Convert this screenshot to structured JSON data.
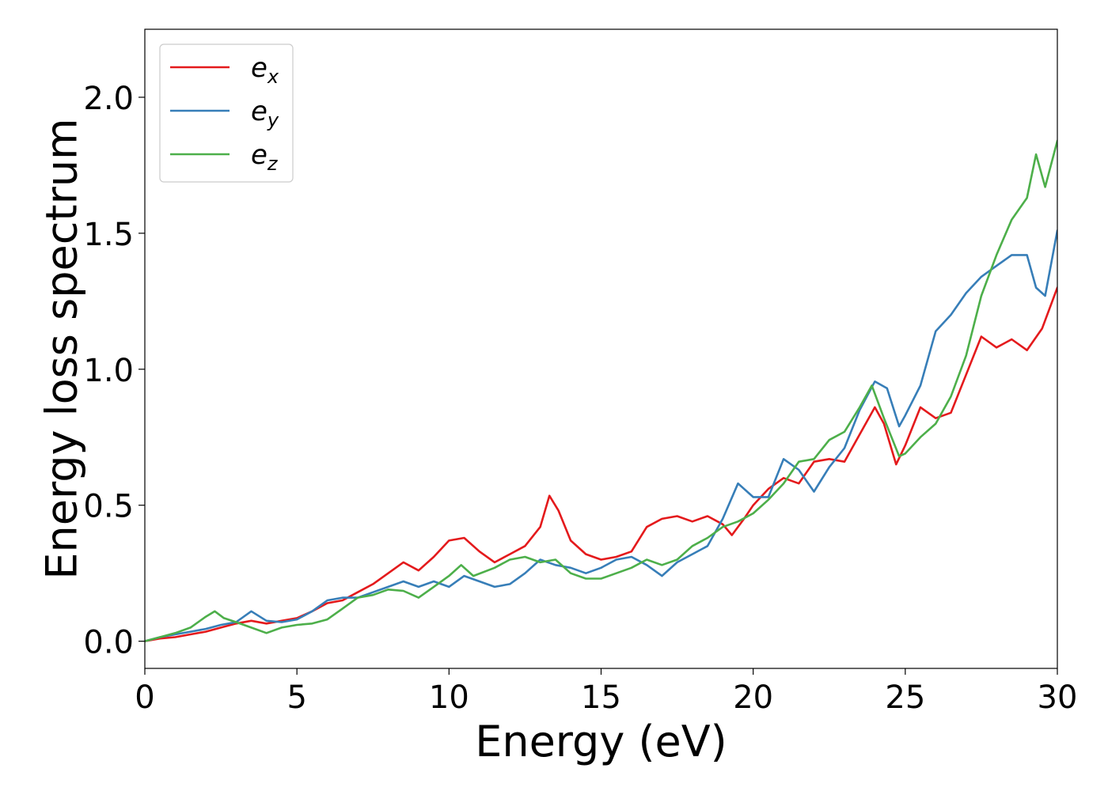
{
  "chart_data": {
    "type": "line",
    "title": "",
    "xlabel": "Energy (eV)",
    "ylabel": "Energy loss spectrum",
    "xlim": [
      0,
      30
    ],
    "ylim": [
      -0.1,
      2.25
    ],
    "x_ticks": [
      "0",
      "5",
      "10",
      "15",
      "20",
      "25",
      "30"
    ],
    "y_ticks": [
      "0.0",
      "0.5",
      "1.0",
      "1.5",
      "2.0"
    ],
    "grid": false,
    "legend_position": "top-left",
    "series": [
      {
        "name": "e",
        "subscript": "x",
        "color": "#e41a1c",
        "points": [
          [
            0,
            0.0
          ],
          [
            0.5,
            0.01
          ],
          [
            1,
            0.015
          ],
          [
            1.5,
            0.025
          ],
          [
            2,
            0.035
          ],
          [
            2.5,
            0.05
          ],
          [
            3,
            0.065
          ],
          [
            3.5,
            0.075
          ],
          [
            4,
            0.065
          ],
          [
            4.5,
            0.075
          ],
          [
            5,
            0.085
          ],
          [
            5.5,
            0.11
          ],
          [
            6,
            0.14
          ],
          [
            6.5,
            0.15
          ],
          [
            7,
            0.18
          ],
          [
            7.5,
            0.21
          ],
          [
            8,
            0.25
          ],
          [
            8.5,
            0.29
          ],
          [
            9,
            0.26
          ],
          [
            9.5,
            0.31
          ],
          [
            10,
            0.37
          ],
          [
            10.5,
            0.38
          ],
          [
            11,
            0.33
          ],
          [
            11.5,
            0.29
          ],
          [
            12,
            0.32
          ],
          [
            12.5,
            0.35
          ],
          [
            13,
            0.42
          ],
          [
            13.3,
            0.535
          ],
          [
            13.6,
            0.48
          ],
          [
            14,
            0.37
          ],
          [
            14.5,
            0.32
          ],
          [
            15,
            0.3
          ],
          [
            15.5,
            0.31
          ],
          [
            16,
            0.33
          ],
          [
            16.5,
            0.42
          ],
          [
            17,
            0.45
          ],
          [
            17.5,
            0.46
          ],
          [
            18,
            0.44
          ],
          [
            18.5,
            0.46
          ],
          [
            19,
            0.43
          ],
          [
            19.3,
            0.39
          ],
          [
            19.7,
            0.45
          ],
          [
            20,
            0.5
          ],
          [
            20.5,
            0.56
          ],
          [
            21,
            0.6
          ],
          [
            21.5,
            0.58
          ],
          [
            22,
            0.66
          ],
          [
            22.5,
            0.67
          ],
          [
            23,
            0.66
          ],
          [
            23.5,
            0.76
          ],
          [
            24,
            0.86
          ],
          [
            24.3,
            0.8
          ],
          [
            24.7,
            0.65
          ],
          [
            25,
            0.72
          ],
          [
            25.5,
            0.86
          ],
          [
            26,
            0.82
          ],
          [
            26.5,
            0.84
          ],
          [
            27,
            0.98
          ],
          [
            27.5,
            1.12
          ],
          [
            28,
            1.08
          ],
          [
            28.5,
            1.11
          ],
          [
            29,
            1.07
          ],
          [
            29.5,
            1.15
          ],
          [
            30,
            1.3
          ]
        ]
      },
      {
        "name": "e",
        "subscript": "y",
        "color": "#377eb8",
        "points": [
          [
            0,
            0.0
          ],
          [
            0.5,
            0.015
          ],
          [
            1,
            0.025
          ],
          [
            1.5,
            0.035
          ],
          [
            2,
            0.045
          ],
          [
            2.5,
            0.06
          ],
          [
            3,
            0.07
          ],
          [
            3.5,
            0.11
          ],
          [
            4,
            0.075
          ],
          [
            4.5,
            0.07
          ],
          [
            5,
            0.08
          ],
          [
            5.5,
            0.11
          ],
          [
            6,
            0.15
          ],
          [
            6.5,
            0.16
          ],
          [
            7,
            0.16
          ],
          [
            7.5,
            0.18
          ],
          [
            8,
            0.2
          ],
          [
            8.5,
            0.22
          ],
          [
            9,
            0.2
          ],
          [
            9.5,
            0.22
          ],
          [
            10,
            0.2
          ],
          [
            10.5,
            0.24
          ],
          [
            11,
            0.22
          ],
          [
            11.5,
            0.2
          ],
          [
            12,
            0.21
          ],
          [
            12.5,
            0.25
          ],
          [
            13,
            0.3
          ],
          [
            13.5,
            0.28
          ],
          [
            14,
            0.27
          ],
          [
            14.5,
            0.25
          ],
          [
            15,
            0.27
          ],
          [
            15.5,
            0.3
          ],
          [
            16,
            0.31
          ],
          [
            16.5,
            0.28
          ],
          [
            17,
            0.24
          ],
          [
            17.5,
            0.29
          ],
          [
            18,
            0.32
          ],
          [
            18.5,
            0.35
          ],
          [
            19,
            0.45
          ],
          [
            19.5,
            0.58
          ],
          [
            20,
            0.53
          ],
          [
            20.5,
            0.53
          ],
          [
            21,
            0.67
          ],
          [
            21.5,
            0.63
          ],
          [
            22,
            0.55
          ],
          [
            22.5,
            0.64
          ],
          [
            23,
            0.71
          ],
          [
            23.5,
            0.85
          ],
          [
            24,
            0.955
          ],
          [
            24.4,
            0.93
          ],
          [
            24.8,
            0.79
          ],
          [
            25,
            0.83
          ],
          [
            25.5,
            0.94
          ],
          [
            26,
            1.14
          ],
          [
            26.5,
            1.2
          ],
          [
            27,
            1.28
          ],
          [
            27.5,
            1.34
          ],
          [
            28,
            1.38
          ],
          [
            28.5,
            1.42
          ],
          [
            29,
            1.42
          ],
          [
            29.3,
            1.3
          ],
          [
            29.6,
            1.27
          ],
          [
            30,
            1.51
          ]
        ]
      },
      {
        "name": "e",
        "subscript": "z",
        "color": "#4daf4a",
        "points": [
          [
            0,
            0.0
          ],
          [
            0.5,
            0.015
          ],
          [
            1,
            0.03
          ],
          [
            1.5,
            0.05
          ],
          [
            2,
            0.09
          ],
          [
            2.3,
            0.11
          ],
          [
            2.6,
            0.085
          ],
          [
            3,
            0.07
          ],
          [
            3.5,
            0.05
          ],
          [
            4,
            0.03
          ],
          [
            4.5,
            0.05
          ],
          [
            5,
            0.06
          ],
          [
            5.5,
            0.065
          ],
          [
            6,
            0.08
          ],
          [
            6.5,
            0.12
          ],
          [
            7,
            0.16
          ],
          [
            7.5,
            0.17
          ],
          [
            8,
            0.19
          ],
          [
            8.5,
            0.185
          ],
          [
            9,
            0.16
          ],
          [
            9.5,
            0.2
          ],
          [
            10,
            0.24
          ],
          [
            10.4,
            0.28
          ],
          [
            10.8,
            0.24
          ],
          [
            11.5,
            0.27
          ],
          [
            12,
            0.3
          ],
          [
            12.5,
            0.31
          ],
          [
            13,
            0.29
          ],
          [
            13.5,
            0.3
          ],
          [
            14,
            0.25
          ],
          [
            14.5,
            0.23
          ],
          [
            15,
            0.23
          ],
          [
            15.5,
            0.25
          ],
          [
            16,
            0.27
          ],
          [
            16.5,
            0.3
          ],
          [
            17,
            0.28
          ],
          [
            17.5,
            0.3
          ],
          [
            18,
            0.35
          ],
          [
            18.5,
            0.38
          ],
          [
            19,
            0.42
          ],
          [
            19.5,
            0.44
          ],
          [
            20,
            0.47
          ],
          [
            20.5,
            0.52
          ],
          [
            21,
            0.58
          ],
          [
            21.5,
            0.66
          ],
          [
            22,
            0.67
          ],
          [
            22.5,
            0.74
          ],
          [
            23,
            0.77
          ],
          [
            23.5,
            0.86
          ],
          [
            23.9,
            0.94
          ],
          [
            24.3,
            0.82
          ],
          [
            24.8,
            0.68
          ],
          [
            25,
            0.69
          ],
          [
            25.5,
            0.75
          ],
          [
            26,
            0.8
          ],
          [
            26.5,
            0.9
          ],
          [
            27,
            1.05
          ],
          [
            27.5,
            1.27
          ],
          [
            28,
            1.42
          ],
          [
            28.5,
            1.55
          ],
          [
            29,
            1.63
          ],
          [
            29.3,
            1.79
          ],
          [
            29.6,
            1.67
          ],
          [
            30,
            1.84
          ]
        ]
      }
    ]
  }
}
